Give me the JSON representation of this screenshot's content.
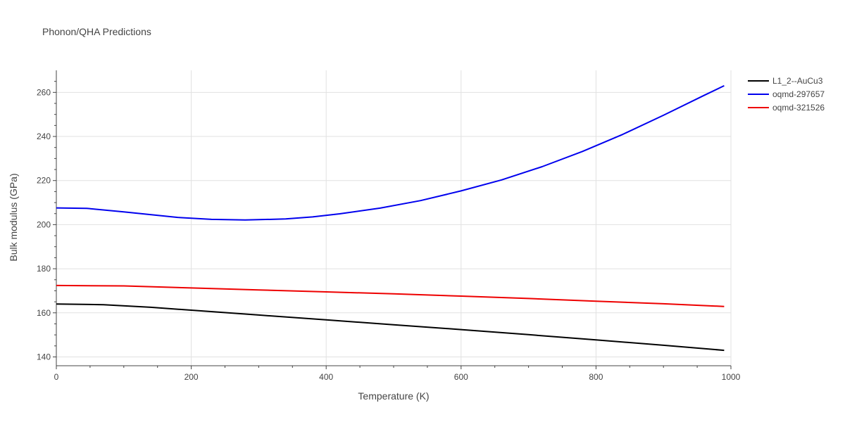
{
  "chart_data": {
    "type": "line",
    "title": "Phonon/QHA Predictions",
    "xlabel": "Temperature (K)",
    "ylabel": "Bulk modulus (GPa)",
    "xlim": [
      0,
      1000
    ],
    "ylim": [
      136,
      270
    ],
    "xticks": [
      0,
      200,
      400,
      600,
      800,
      1000
    ],
    "yticks": [
      140,
      160,
      180,
      200,
      220,
      240,
      260
    ],
    "grid": true,
    "legend_position": "top-right, outside plot",
    "series": [
      {
        "name": "L1_2--AuCu3",
        "color": "#000000",
        "x": [
          0,
          70,
          140,
          200,
          300,
          400,
          500,
          600,
          700,
          800,
          900,
          990
        ],
        "y": [
          164.0,
          163.7,
          162.5,
          161.2,
          159.0,
          156.8,
          154.6,
          152.4,
          150.1,
          147.7,
          145.3,
          143.0
        ]
      },
      {
        "name": "oqmd-297657",
        "color": "#0000ee",
        "x": [
          0,
          45,
          100,
          180,
          230,
          280,
          340,
          380,
          420,
          480,
          540,
          600,
          660,
          720,
          780,
          840,
          900,
          960,
          990
        ],
        "y": [
          207.6,
          207.4,
          205.8,
          203.3,
          202.4,
          202.1,
          202.6,
          203.5,
          204.9,
          207.5,
          210.9,
          215.3,
          220.3,
          226.3,
          233.2,
          241.0,
          249.6,
          258.6,
          263.0
        ]
      },
      {
        "name": "oqmd-321526",
        "color": "#ee0000",
        "x": [
          0,
          100,
          200,
          300,
          400,
          500,
          600,
          700,
          800,
          900,
          990
        ],
        "y": [
          172.4,
          172.2,
          171.3,
          170.4,
          169.5,
          168.6,
          167.6,
          166.5,
          165.3,
          164.1,
          162.9
        ]
      }
    ]
  }
}
